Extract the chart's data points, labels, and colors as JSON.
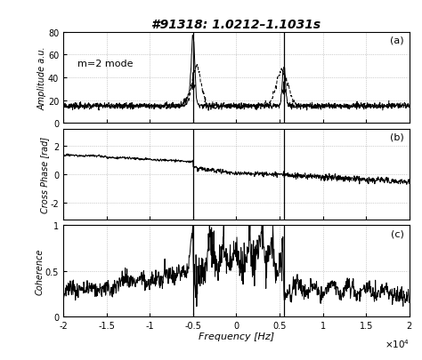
{
  "title": "#91318: 1.0212–1.1031s",
  "freq_min": -20000,
  "freq_max": 20000,
  "vline1": -5000,
  "vline2": 5500,
  "subplot_labels": [
    "(a)",
    "(b)",
    "(c)"
  ],
  "panel_a": {
    "ylabel": "Amplitude a.u.",
    "ylim": [
      0,
      80
    ],
    "yticks": [
      0,
      20,
      40,
      60,
      80
    ],
    "annotation": "m=2 mode"
  },
  "panel_b": {
    "ylabel": "Cross Phase [rad]",
    "ylim": [
      -3.2,
      3.2
    ],
    "yticks": [
      -2,
      0,
      2
    ]
  },
  "panel_c": {
    "ylabel": "Coherence",
    "ylim": [
      0,
      1
    ],
    "yticks": [
      0,
      0.5,
      1
    ],
    "xlabel": "Frequency [Hz]"
  },
  "xticks": [
    -20000,
    -15000,
    -10000,
    -5000,
    0,
    5000,
    10000,
    15000,
    20000
  ],
  "xticklabels": [
    "-2",
    "-1.5",
    "-1",
    "-0.5",
    "0",
    "0.5",
    "1",
    "1.5",
    "2"
  ]
}
